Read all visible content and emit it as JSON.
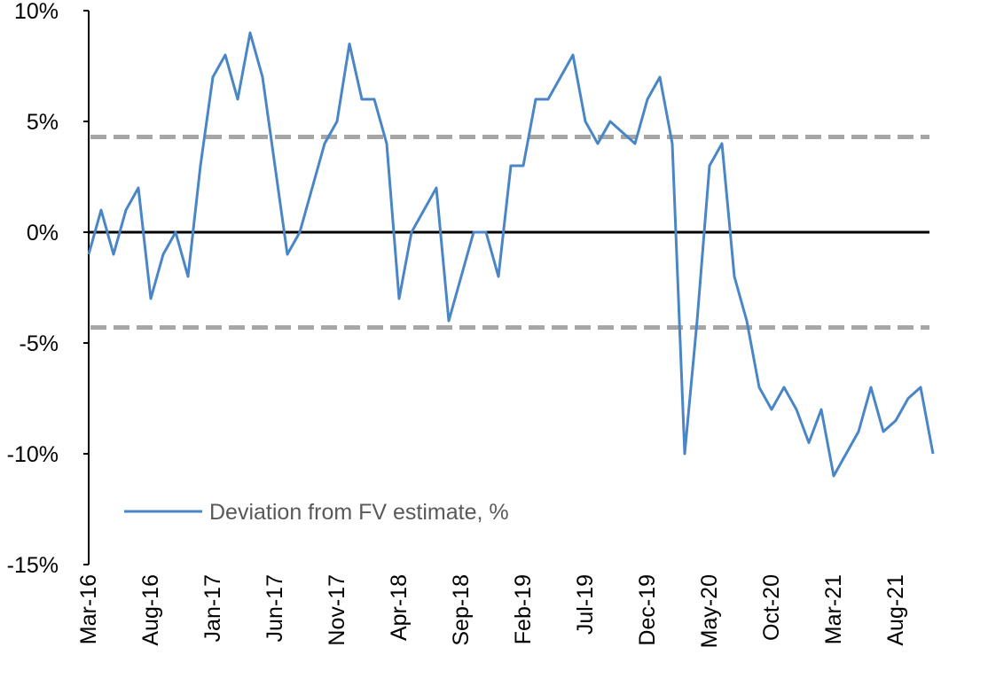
{
  "chart_data": {
    "type": "line",
    "categories": [
      "Mar-16",
      null,
      null,
      null,
      null,
      "Aug-16",
      null,
      null,
      null,
      null,
      "Jan-17",
      null,
      null,
      null,
      null,
      "Jun-17",
      null,
      null,
      null,
      null,
      "Nov-17",
      null,
      null,
      null,
      null,
      "Apr-18",
      null,
      null,
      null,
      null,
      "Sep-18",
      null,
      null,
      null,
      null,
      "Feb-19",
      null,
      null,
      null,
      null,
      "Jul-19",
      null,
      null,
      null,
      null,
      "Dec-19",
      null,
      null,
      null,
      null,
      "May-20",
      null,
      null,
      null,
      null,
      "Oct-20",
      null,
      null,
      null,
      null,
      "Mar-21",
      null,
      null,
      null,
      null,
      "Aug-21",
      null,
      null,
      null
    ],
    "series": [
      {
        "name": "Deviation from FV estimate, %",
        "color": "#4a86c5",
        "values": [
          -1,
          1,
          -1,
          1,
          2,
          -3,
          -1,
          0,
          -2,
          3,
          7,
          8,
          6,
          9,
          7,
          3,
          -1,
          0,
          2,
          4,
          5,
          8.5,
          6,
          6,
          4,
          -3,
          0,
          1,
          2,
          -4,
          -2,
          0,
          0,
          -2,
          3,
          3,
          6,
          6,
          7,
          8,
          5,
          4,
          5,
          4.5,
          4,
          6,
          7,
          4,
          -10,
          -4,
          3,
          4,
          -2,
          -4,
          -7,
          -8,
          -7,
          -8,
          -9.5,
          -8,
          -11,
          -10,
          -9,
          -7,
          -9,
          -8.5,
          -7.5,
          -7,
          -10
        ]
      }
    ],
    "ylim": [
      -15,
      10
    ],
    "yticks": [
      {
        "value": 10,
        "label": "10%"
      },
      {
        "value": 5,
        "label": "5%"
      },
      {
        "value": 0,
        "label": "0%"
      },
      {
        "value": -5,
        "label": "-5%"
      },
      {
        "value": -10,
        "label": "-10%"
      },
      {
        "value": -15,
        "label": "-15%"
      }
    ],
    "reference_lines": [
      4.3,
      -4.3
    ],
    "reference_color": "#a6a6a6",
    "legend": "lower-left"
  }
}
